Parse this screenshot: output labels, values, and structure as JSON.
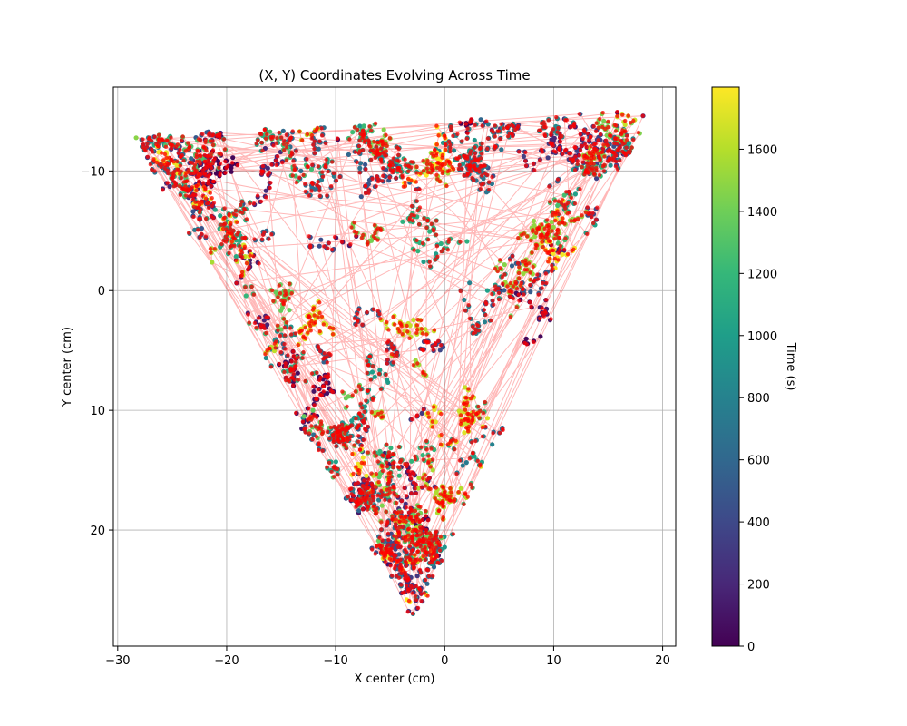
{
  "chart_data": {
    "type": "scatter",
    "title": "(X, Y) Coordinates Evolving Across Time",
    "xlabel": "X center (cm)",
    "ylabel": "Y center (cm)",
    "xlim": [
      -30.4,
      21.2
    ],
    "ylim": [
      29.7,
      -17.0
    ],
    "y_inverted": true,
    "x_ticks": [
      -30,
      -20,
      -10,
      0,
      10,
      20
    ],
    "x_tick_labels": [
      "−30",
      "−20",
      "−10",
      "0",
      "10",
      "20"
    ],
    "y_ticks": [
      -10,
      0,
      10,
      20
    ],
    "y_tick_labels": [
      "−10",
      "0",
      "10",
      "20"
    ],
    "grid": true,
    "series": [
      {
        "kind": "trajectory",
        "point_color_by": "time",
        "line_color": "#ff0000",
        "overlay_color": "#ff0000",
        "outline_vertices": [
          [
            -28,
            -12.6
          ],
          [
            18.2,
            -14.6
          ],
          [
            -2.9,
            27.0
          ]
        ],
        "extreme_points": [
          [
            -27.8,
            -12.6
          ],
          [
            18.2,
            -14.6
          ],
          [
            -2.9,
            27.0
          ],
          [
            4.0,
            -13.9
          ]
        ]
      }
    ],
    "colorbar": {
      "label": "Time (s)",
      "colormap": "viridis",
      "range": [
        0,
        1800
      ],
      "ticks": [
        0,
        200,
        400,
        600,
        800,
        1000,
        1200,
        1400,
        1600
      ],
      "tick_labels": [
        "0",
        "200",
        "400",
        "600",
        "800",
        "1000",
        "1200",
        "1400",
        "1600"
      ],
      "colors": [
        "#440154",
        "#482878",
        "#3e4989",
        "#31688e",
        "#26828e",
        "#1f9e89",
        "#35b779",
        "#6ece58",
        "#b5de2b",
        "#fde725"
      ]
    }
  }
}
